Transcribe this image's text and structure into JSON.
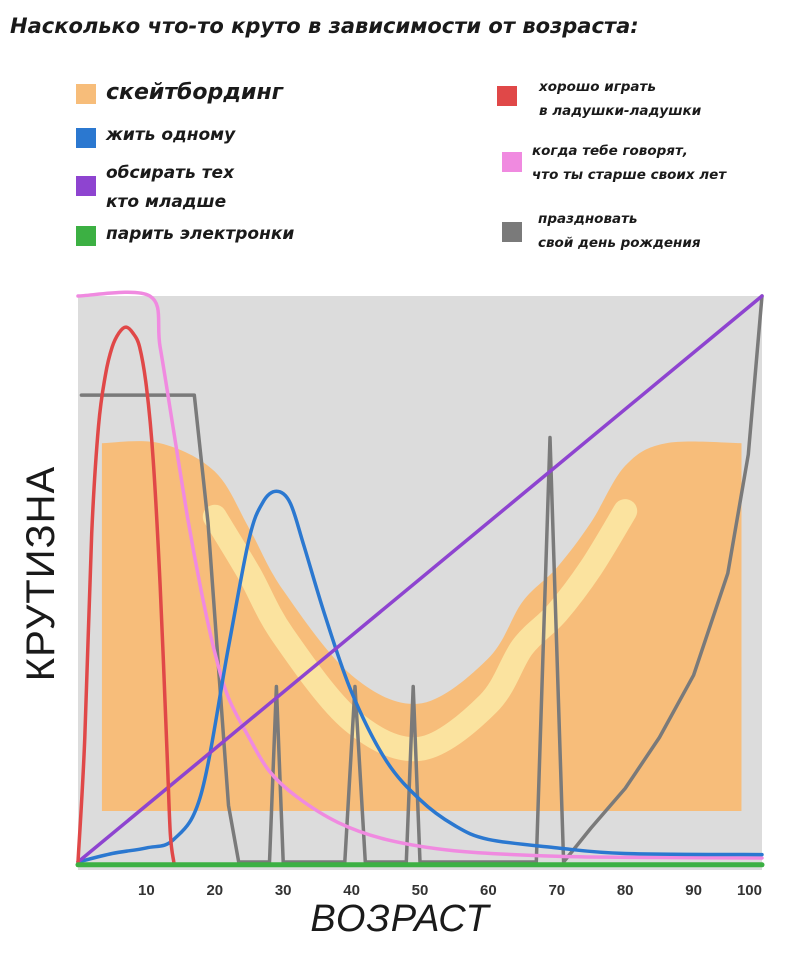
{
  "title": "Насколько что-то круто в зависимости от возраста:",
  "legend": [
    {
      "label": "скейтбординг",
      "color": "#f7bd7a"
    },
    {
      "label": "жить одному",
      "color": "#2b78d0"
    },
    {
      "label": "обсирать тех\nкто младше",
      "color": "#8e44d0"
    },
    {
      "label": "парить электронки",
      "color": "#3cb043"
    },
    {
      "label": "хорошо играть\nв ладушки-ладушки",
      "color": "#e04848"
    },
    {
      "label": "когда тебе говорят,\nчто ты старше своих лет",
      "color": "#f08ae0"
    },
    {
      "label": "праздновать\nсвой день рождения",
      "color": "#7a7a7a"
    }
  ],
  "chart_data": {
    "type": "area",
    "xlabel": "ВОЗРАСТ",
    "ylabel": "КРУТИЗНА",
    "xlim": [
      0,
      100
    ],
    "ylim": [
      0,
      100
    ],
    "x_ticks": [
      10,
      20,
      30,
      40,
      50,
      60,
      70,
      80,
      90,
      100
    ],
    "background": "#dcdcdc",
    "series": [
      {
        "name": "скейтбординг",
        "color": "#f7bd7a",
        "x": [
          3.5,
          12,
          20,
          25,
          30,
          40,
          50,
          60,
          65,
          70,
          75,
          80,
          86,
          97
        ],
        "y": [
          74,
          74,
          69,
          59,
          48,
          33,
          28,
          36,
          46,
          52,
          60,
          70,
          74,
          74
        ]
      },
      {
        "name": "жить одному",
        "color": "#2b78d0",
        "x": [
          0,
          5,
          10,
          14,
          18,
          22,
          25,
          27,
          29,
          31,
          33,
          36,
          40,
          45,
          50,
          55,
          60,
          70,
          80,
          100
        ],
        "y": [
          0,
          1.5,
          2.5,
          4,
          12,
          38,
          57,
          63.5,
          65.5,
          63.5,
          56,
          44,
          30,
          18,
          11,
          6.5,
          4,
          2.5,
          1.5,
          1.3
        ]
      },
      {
        "name": "обсирать тех кто младше",
        "color": "#8e44d0",
        "x": [
          0,
          100
        ],
        "y": [
          0,
          100
        ]
      },
      {
        "name": "парить электронки",
        "color": "#3cb043",
        "x": [
          0,
          100
        ],
        "y": [
          -0.5,
          -0.5
        ]
      },
      {
        "name": "хорошо играть в ладушки-ладушки",
        "color": "#e04848",
        "x": [
          0,
          1,
          2,
          3,
          4,
          5,
          6,
          7,
          8,
          9,
          10,
          11,
          12,
          13,
          13.5,
          14
        ],
        "y": [
          0,
          22,
          58,
          77,
          86,
          91,
          93.5,
          94.5,
          93.5,
          91,
          84,
          71,
          49,
          20,
          5,
          0
        ]
      },
      {
        "name": "когда тебе говорят, что ты старше своих лет",
        "color": "#f08ae0",
        "x": [
          0,
          10.5,
          12,
          14,
          16,
          18,
          20,
          22,
          25,
          28,
          32,
          38,
          45,
          55,
          70,
          85,
          100
        ],
        "y": [
          100,
          100,
          91,
          76,
          61,
          48,
          37,
          29,
          22,
          16,
          11.5,
          7,
          4,
          2,
          1,
          0.8,
          0.7
        ]
      },
      {
        "name": "праздновать свой день рождения",
        "color": "#7a7a7a",
        "x": [
          0.5,
          17,
          19,
          22,
          23.5,
          28,
          29,
          30,
          31,
          39,
          40.5,
          42,
          48,
          49,
          50,
          67,
          69,
          71,
          75,
          80,
          85,
          90,
          95,
          98,
          100
        ],
        "y": [
          82.5,
          82.5,
          60,
          10,
          0,
          0,
          31,
          0,
          0,
          0,
          31,
          0,
          0,
          31,
          0,
          0,
          75,
          0,
          6,
          13,
          22,
          33,
          51,
          72,
          100
        ]
      }
    ]
  }
}
